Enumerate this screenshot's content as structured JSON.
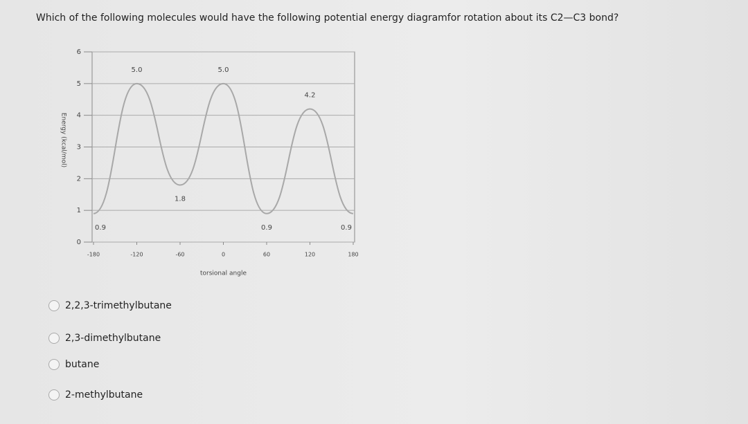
{
  "question": "Which of the following molecules would have the following potential energy diagramfor rotation about its C2—C3 bond?",
  "chart_data": {
    "type": "line",
    "y_label": "Energy (kcal/mol)",
    "x_label": "torsional angle",
    "x": [
      -180,
      -120,
      -60,
      0,
      60,
      120,
      180
    ],
    "values": [
      0.9,
      5,
      1.8,
      5,
      0.9,
      4.2,
      0.9
    ],
    "value_labels": [
      "0.9",
      "5.0",
      "1.8",
      "5.0",
      "0.9",
      "4.2",
      "0.9"
    ],
    "color": "#a8a8a8",
    "xlim": [
      -180,
      180
    ],
    "ylim": [
      0,
      6
    ],
    "xticks": [
      -180,
      -120,
      -60,
      0,
      60,
      120,
      180
    ],
    "yticks": [
      0,
      1,
      2,
      3,
      4,
      5,
      6
    ],
    "grid": true
  },
  "options": [
    "2,2,3-trimethylbutane",
    "2,3-dimethylbutane",
    "butane",
    "2-methylbutane"
  ]
}
